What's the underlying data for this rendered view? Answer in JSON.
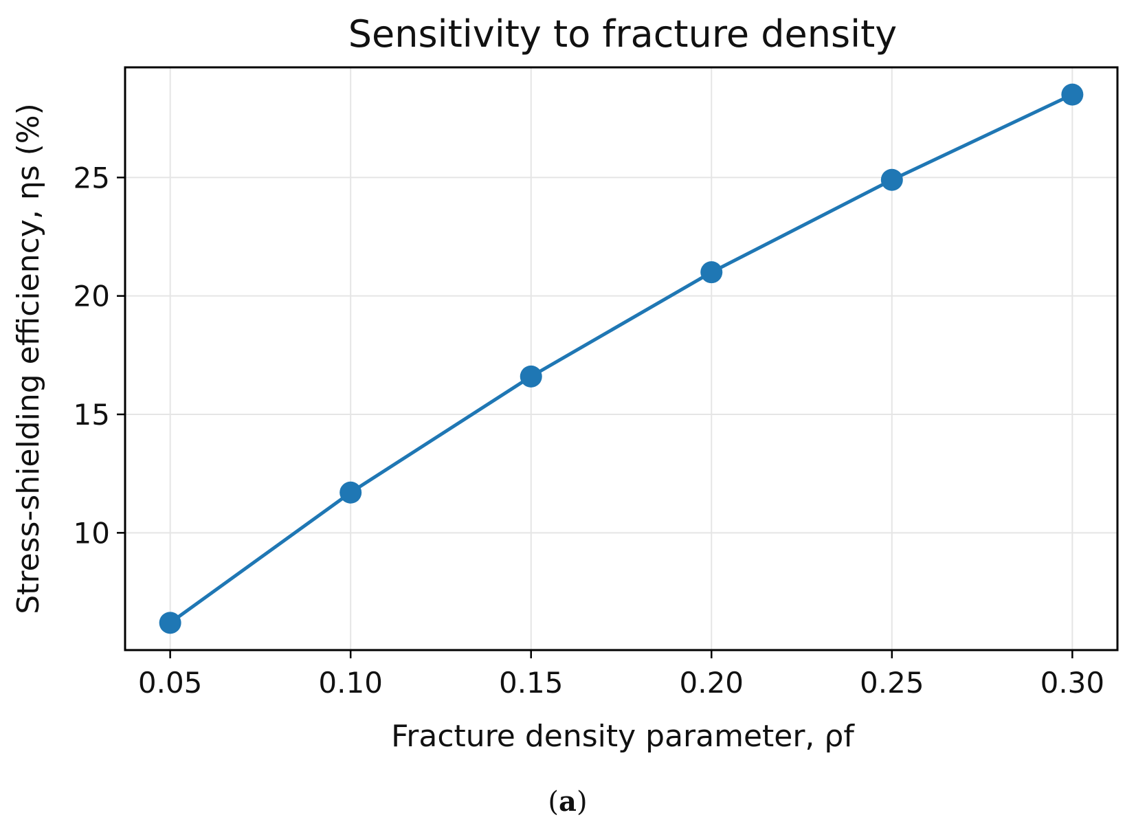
{
  "chart_data": {
    "type": "line",
    "title": "Sensitivity to fracture density",
    "xlabel": "Fracture density parameter, ρf",
    "ylabel": "Stress-shielding efficiency, ηs (%)",
    "x": [
      0.05,
      0.1,
      0.15,
      0.2,
      0.25,
      0.3
    ],
    "x_tick_labels": [
      "0.05",
      "0.10",
      "0.15",
      "0.20",
      "0.25",
      "0.30"
    ],
    "y_ticks": [
      10,
      15,
      20,
      25
    ],
    "y_tick_labels": [
      "10",
      "15",
      "20",
      "25"
    ],
    "series": [
      {
        "values": [
          6.2,
          11.7,
          16.6,
          21.0,
          24.9,
          28.5
        ]
      }
    ],
    "xlim": [
      0.0375,
      0.3125
    ],
    "ylim": [
      5.05,
      29.65
    ],
    "grid": true,
    "colors": {
      "series": "#1f77b4",
      "grid": "#e5e5e5",
      "axes": "#000000"
    }
  },
  "caption": {
    "open": "(",
    "letter": "a",
    "close": ")"
  }
}
